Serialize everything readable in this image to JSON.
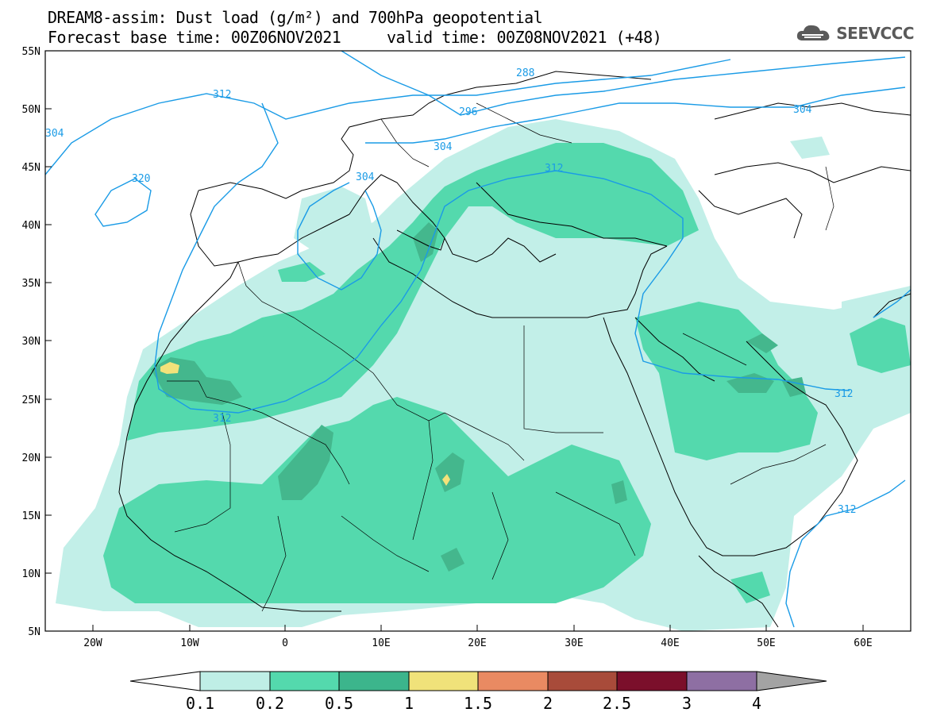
{
  "header": {
    "title_line1": "DREAM8-assim: Dust load (g/m²) and 700hPa geopotential",
    "title_line2": "Forecast base time: 00Z06NOV2021     valid time: 00Z08NOV2021 (+48)",
    "logo_text": "SEEVCCC"
  },
  "axes": {
    "lat_labels": [
      "55N",
      "50N",
      "45N",
      "40N",
      "35N",
      "30N",
      "25N",
      "20N",
      "15N",
      "10N",
      "5N"
    ],
    "lon_labels": [
      "20W",
      "10W",
      "0",
      "10E",
      "20E",
      "30E",
      "40E",
      "50E",
      "60E"
    ]
  },
  "contours": {
    "labels": [
      "288",
      "296",
      "304",
      "304",
      "304",
      "312",
      "312",
      "312",
      "312",
      "312",
      "320",
      "304"
    ],
    "color": "#1a9be6"
  },
  "colorbar": {
    "ticks": [
      "0.1",
      "0.2",
      "0.5",
      "1",
      "1.5",
      "2",
      "2.5",
      "3",
      "4"
    ],
    "colors": [
      "#bfeee6",
      "#54d9ad",
      "#3cb58c",
      "#f0e27a",
      "#e98a62",
      "#a84b3a",
      "#7b0f2b",
      "#8e6fa3",
      "#a3a3a3"
    ]
  },
  "dust_colors": {
    "low": "#c2efe8",
    "mid": "#54d9ad",
    "high": "#44b78d",
    "peak": "#f3e27a"
  }
}
